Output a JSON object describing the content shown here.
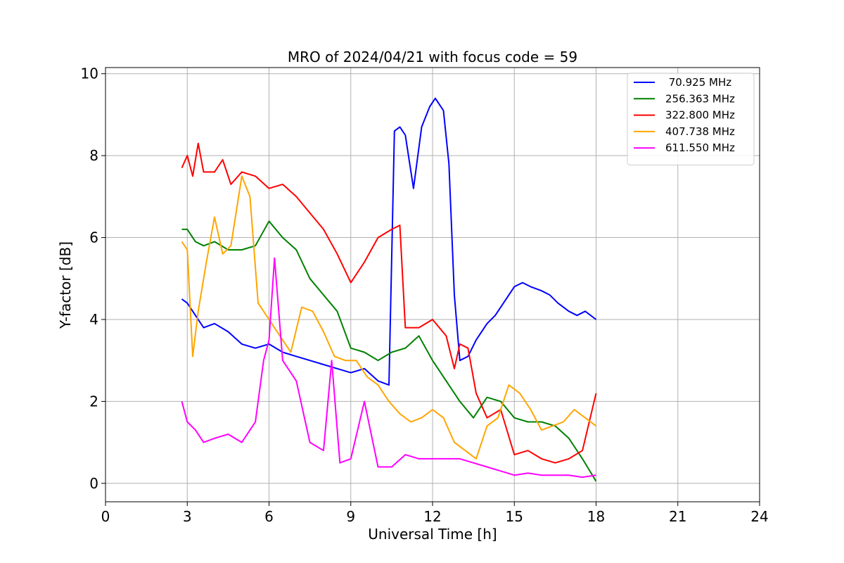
{
  "chart_data": {
    "type": "line",
    "title": "MRO of 2024/04/21 with focus code = 59",
    "xlabel": "Universal Time [h]",
    "ylabel": "Y-factor [dB]",
    "xlim": [
      0,
      24
    ],
    "ylim": [
      -0.45,
      10.15
    ],
    "xticks": [
      0,
      3,
      6,
      9,
      12,
      15,
      18,
      21,
      24
    ],
    "yticks": [
      0,
      2,
      4,
      6,
      8,
      10
    ],
    "grid": true,
    "legend_position": "top-right",
    "series": [
      {
        "name": " 70.925 MHz",
        "color": "#0000ff",
        "x": [
          2.8,
          3.0,
          3.3,
          3.6,
          4.0,
          4.5,
          5.0,
          5.5,
          6.0,
          6.5,
          7.0,
          7.5,
          8.0,
          8.5,
          9.0,
          9.5,
          10.0,
          10.4,
          10.6,
          10.8,
          11.0,
          11.3,
          11.6,
          11.9,
          12.1,
          12.4,
          12.6,
          12.8,
          13.0,
          13.3,
          13.6,
          14.0,
          14.3,
          14.6,
          15.0,
          15.3,
          15.6,
          16.0,
          16.3,
          16.6,
          17.0,
          17.3,
          17.6,
          18.0
        ],
        "y": [
          4.5,
          4.4,
          4.1,
          3.8,
          3.9,
          3.7,
          3.4,
          3.3,
          3.4,
          3.2,
          3.1,
          3.0,
          2.9,
          2.8,
          2.7,
          2.8,
          2.5,
          2.4,
          8.6,
          8.7,
          8.5,
          7.2,
          8.7,
          9.2,
          9.4,
          9.1,
          7.8,
          4.6,
          3.0,
          3.1,
          3.5,
          3.9,
          4.1,
          4.4,
          4.8,
          4.9,
          4.8,
          4.7,
          4.6,
          4.4,
          4.2,
          4.1,
          4.2,
          4.0
        ]
      },
      {
        "name": "256.363 MHz",
        "color": "#008000",
        "x": [
          2.8,
          3.0,
          3.3,
          3.6,
          4.0,
          4.5,
          5.0,
          5.5,
          6.0,
          6.5,
          7.0,
          7.5,
          8.0,
          8.5,
          9.0,
          9.5,
          10.0,
          10.5,
          11.0,
          11.5,
          12.0,
          12.5,
          13.0,
          13.5,
          14.0,
          14.5,
          15.0,
          15.5,
          16.0,
          16.5,
          17.0,
          17.5,
          18.0
        ],
        "y": [
          6.2,
          6.2,
          5.9,
          5.8,
          5.9,
          5.7,
          5.7,
          5.8,
          6.4,
          6.0,
          5.7,
          5.0,
          4.6,
          4.2,
          3.3,
          3.2,
          3.0,
          3.2,
          3.3,
          3.6,
          3.0,
          2.5,
          2.0,
          1.6,
          2.1,
          2.0,
          1.6,
          1.5,
          1.5,
          1.4,
          1.1,
          0.6,
          0.05
        ]
      },
      {
        "name": "322.800 MHz",
        "color": "#ff0000",
        "x": [
          2.8,
          3.0,
          3.2,
          3.4,
          3.6,
          4.0,
          4.3,
          4.6,
          5.0,
          5.5,
          6.0,
          6.5,
          7.0,
          7.5,
          8.0,
          8.5,
          9.0,
          9.5,
          10.0,
          10.5,
          10.8,
          11.0,
          11.5,
          12.0,
          12.5,
          12.8,
          13.0,
          13.3,
          13.6,
          14.0,
          14.5,
          15.0,
          15.5,
          16.0,
          16.5,
          17.0,
          17.5,
          18.0
        ],
        "y": [
          7.7,
          8.0,
          7.5,
          8.3,
          7.6,
          7.6,
          7.9,
          7.3,
          7.6,
          7.5,
          7.2,
          7.3,
          7.0,
          6.6,
          6.2,
          5.6,
          4.9,
          5.4,
          6.0,
          6.2,
          6.3,
          3.8,
          3.8,
          4.0,
          3.6,
          2.8,
          3.4,
          3.3,
          2.2,
          1.6,
          1.8,
          0.7,
          0.8,
          0.6,
          0.5,
          0.6,
          0.8,
          2.2
        ]
      },
      {
        "name": "407.738 MHz",
        "color": "#ffa500",
        "x": [
          2.8,
          3.0,
          3.2,
          3.4,
          3.7,
          4.0,
          4.3,
          4.6,
          5.0,
          5.3,
          5.6,
          6.0,
          6.4,
          6.8,
          7.2,
          7.6,
          8.0,
          8.4,
          8.8,
          9.2,
          9.6,
          10.0,
          10.4,
          10.8,
          11.2,
          11.6,
          12.0,
          12.4,
          12.8,
          13.2,
          13.6,
          14.0,
          14.4,
          14.8,
          15.2,
          15.6,
          16.0,
          16.4,
          16.8,
          17.2,
          17.6,
          18.0
        ],
        "y": [
          5.9,
          5.7,
          3.1,
          4.2,
          5.4,
          6.5,
          5.6,
          5.8,
          7.5,
          7.0,
          4.4,
          4.0,
          3.6,
          3.2,
          4.3,
          4.2,
          3.7,
          3.1,
          3.0,
          3.0,
          2.6,
          2.4,
          2.0,
          1.7,
          1.5,
          1.6,
          1.8,
          1.6,
          1.0,
          0.8,
          0.6,
          1.4,
          1.6,
          2.4,
          2.2,
          1.8,
          1.3,
          1.4,
          1.5,
          1.8,
          1.6,
          1.4
        ]
      },
      {
        "name": "611.550 MHz",
        "color": "#ff00ff",
        "x": [
          2.8,
          3.0,
          3.3,
          3.6,
          4.0,
          4.5,
          5.0,
          5.5,
          5.8,
          6.0,
          6.2,
          6.5,
          7.0,
          7.5,
          8.0,
          8.3,
          8.6,
          9.0,
          9.5,
          10.0,
          10.5,
          11.0,
          11.5,
          12.0,
          12.5,
          13.0,
          13.5,
          14.0,
          14.5,
          15.0,
          15.5,
          16.0,
          16.5,
          17.0,
          17.5,
          18.0
        ],
        "y": [
          2.0,
          1.5,
          1.3,
          1.0,
          1.1,
          1.2,
          1.0,
          1.5,
          3.0,
          3.5,
          5.5,
          3.0,
          2.5,
          1.0,
          0.8,
          3.0,
          0.5,
          0.6,
          2.0,
          0.4,
          0.4,
          0.7,
          0.6,
          0.6,
          0.6,
          0.6,
          0.5,
          0.4,
          0.3,
          0.2,
          0.25,
          0.2,
          0.2,
          0.2,
          0.15,
          0.2
        ]
      }
    ]
  }
}
